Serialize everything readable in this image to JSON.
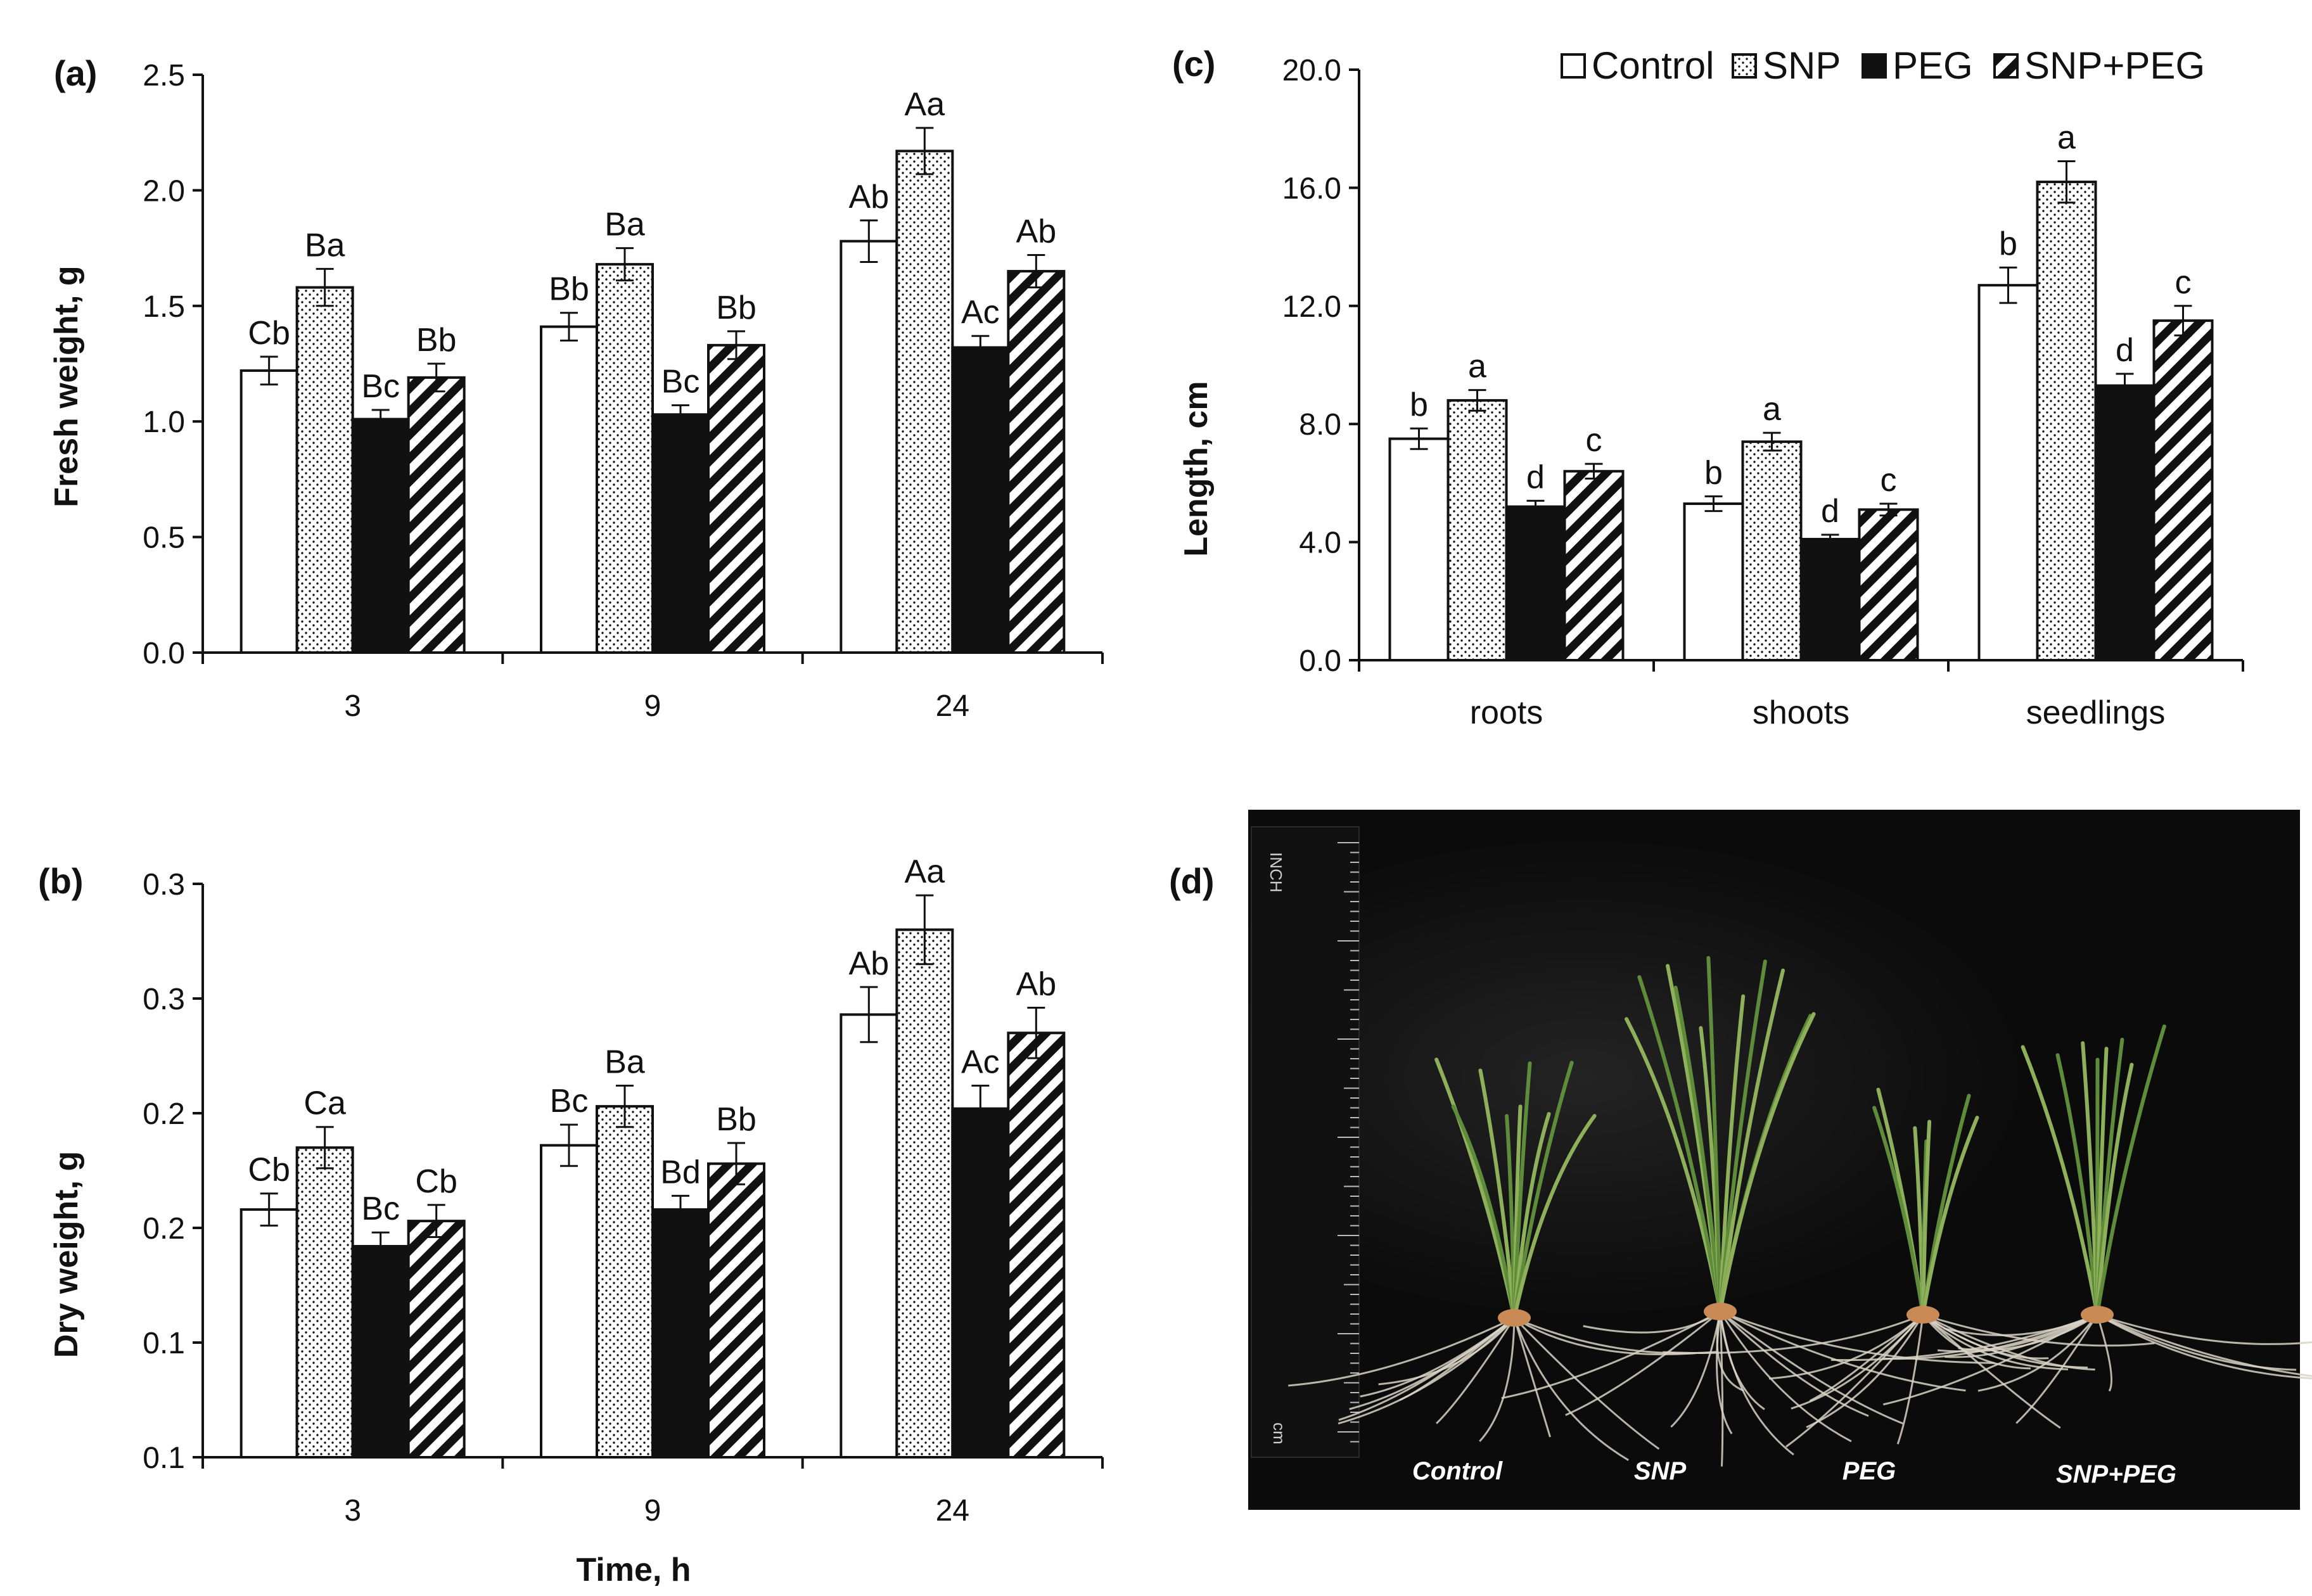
{
  "colors": {
    "background": "#ffffff",
    "ink": "#111111",
    "photo_bg": "#0b0b0b",
    "stem": "#8fb05a",
    "leaf": "#5f8c3a",
    "root": "#d9d3c6",
    "seed": "#c98a55"
  },
  "legend": [
    "Control",
    "SNP",
    "PEG",
    "SNP+PEG"
  ],
  "chart_data": [
    {
      "panel": "(a)",
      "type": "bar",
      "xlabel": "",
      "ylabel": "Fresh weight, g",
      "ylim": [
        0,
        2.5
      ],
      "yticks": [
        "0.0",
        "0.5",
        "1.0",
        "1.5",
        "2.0",
        "2.5"
      ],
      "categories": [
        "3",
        "9",
        "24"
      ],
      "series": [
        {
          "name": "Control",
          "values": [
            1.22,
            1.41,
            1.78
          ],
          "errors": [
            0.06,
            0.06,
            0.09
          ],
          "labels": [
            "Cb",
            "Bb",
            "Ab"
          ]
        },
        {
          "name": "SNP",
          "values": [
            1.58,
            1.68,
            2.17
          ],
          "errors": [
            0.08,
            0.07,
            0.1
          ],
          "labels": [
            "Ba",
            "Ba",
            "Aa"
          ]
        },
        {
          "name": "PEG",
          "values": [
            1.01,
            1.03,
            1.32
          ],
          "errors": [
            0.04,
            0.04,
            0.05
          ],
          "labels": [
            "Bc",
            "Bc",
            "Ac"
          ]
        },
        {
          "name": "SNP+PEG",
          "values": [
            1.19,
            1.33,
            1.65
          ],
          "errors": [
            0.06,
            0.06,
            0.07
          ],
          "labels": [
            "Bb",
            "Bb",
            "Ab"
          ]
        }
      ]
    },
    {
      "panel": "(b)",
      "type": "bar",
      "xlabel": "Time, h",
      "ylabel": "Dry weight, g",
      "ylim": [
        0.1,
        0.35
      ],
      "yticks": [
        "0.1",
        "0.1",
        "0.2",
        "0.2",
        "0.3",
        "0.3"
      ],
      "categories": [
        "3",
        "9",
        "24"
      ],
      "series": [
        {
          "name": "Control",
          "values": [
            0.208,
            0.236,
            0.293
          ],
          "errors": [
            0.007,
            0.009,
            0.012
          ],
          "labels": [
            "Cb",
            "Bc",
            "Ab"
          ]
        },
        {
          "name": "SNP",
          "values": [
            0.235,
            0.253,
            0.33
          ],
          "errors": [
            0.009,
            0.009,
            0.015
          ],
          "labels": [
            "Ca",
            "Ba",
            "Aa"
          ]
        },
        {
          "name": "PEG",
          "values": [
            0.192,
            0.208,
            0.252
          ],
          "errors": [
            0.006,
            0.006,
            0.01
          ],
          "labels": [
            "Bc",
            "Bd",
            "Ac"
          ]
        },
        {
          "name": "SNP+PEG",
          "values": [
            0.203,
            0.228,
            0.285
          ],
          "errors": [
            0.007,
            0.009,
            0.011
          ],
          "labels": [
            "Cb",
            "Bb",
            "Ab"
          ]
        }
      ]
    },
    {
      "panel": "(c)",
      "type": "bar",
      "xlabel": "",
      "ylabel": "Length, cm",
      "ylim": [
        0,
        20
      ],
      "yticks": [
        "0.0",
        "4.0",
        "8.0",
        "12.0",
        "16.0",
        "20.0"
      ],
      "categories": [
        "roots",
        "shoots",
        "seedlings"
      ],
      "series": [
        {
          "name": "Control",
          "values": [
            7.5,
            5.3,
            12.7
          ],
          "errors": [
            0.35,
            0.25,
            0.6
          ],
          "labels": [
            "b",
            "b",
            "b"
          ]
        },
        {
          "name": "SNP",
          "values": [
            8.8,
            7.4,
            16.2
          ],
          "errors": [
            0.35,
            0.3,
            0.7
          ],
          "labels": [
            "a",
            "a",
            "a"
          ]
        },
        {
          "name": "PEG",
          "values": [
            5.2,
            4.1,
            9.3
          ],
          "errors": [
            0.2,
            0.15,
            0.4
          ],
          "labels": [
            "d",
            "d",
            "d"
          ]
        },
        {
          "name": "SNP+PEG",
          "values": [
            6.4,
            5.1,
            11.5
          ],
          "errors": [
            0.25,
            0.2,
            0.5
          ],
          "labels": [
            "c",
            "c",
            "c"
          ]
        }
      ]
    }
  ],
  "photo": {
    "panel": "(d)",
    "labels": [
      "Control",
      "SNP",
      "PEG",
      "SNP+PEG"
    ],
    "ruler_header": "INCH",
    "ruler_footer": "cm"
  }
}
